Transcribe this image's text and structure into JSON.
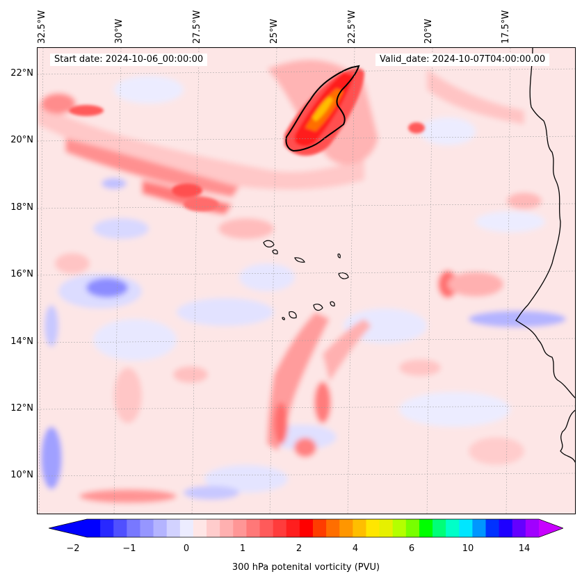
{
  "header": {
    "start_date": "Start date: 2024-10-06_00:00:00",
    "valid_date": "Valid_date: 2024-10-07T04:00:00.00"
  },
  "axes": {
    "longitude_labels": [
      "32.5°W",
      "30°W",
      "27.5°W",
      "25°W",
      "22.5°W",
      "20°W",
      "17.5°W"
    ],
    "latitude_labels": [
      "22°N",
      "20°N",
      "18°N",
      "16°N",
      "14°N",
      "12°N",
      "10°N"
    ]
  },
  "colorbar": {
    "label": "300 hPa potenital vorticity (PVU)",
    "tick_labels": [
      "−2",
      "−1",
      "0",
      "1",
      "2",
      "4",
      "6",
      "10",
      "14"
    ],
    "colors": [
      "#0000ff",
      "#2828ff",
      "#5050ff",
      "#7878ff",
      "#9696ff",
      "#b4b4ff",
      "#d2d2ff",
      "#ececff",
      "#ffe6e6",
      "#ffcccc",
      "#ffb0b0",
      "#ff9696",
      "#ff7878",
      "#ff5a5a",
      "#ff3c3c",
      "#ff1e1e",
      "#ff0000",
      "#ff3c00",
      "#ff6e00",
      "#ff9600",
      "#ffbe00",
      "#ffe600",
      "#e6f000",
      "#b4ff00",
      "#78ff00",
      "#00ff00",
      "#00ff78",
      "#00ffc8",
      "#00e6ff",
      "#0096ff",
      "#0032ff",
      "#1e00ff",
      "#6400ff",
      "#a000ff"
    ],
    "extend_low_color": "#0000ff",
    "extend_high_color": "#c800ff"
  },
  "map": {
    "background_color": "#fde8e8",
    "coastline_color": "#000000"
  }
}
